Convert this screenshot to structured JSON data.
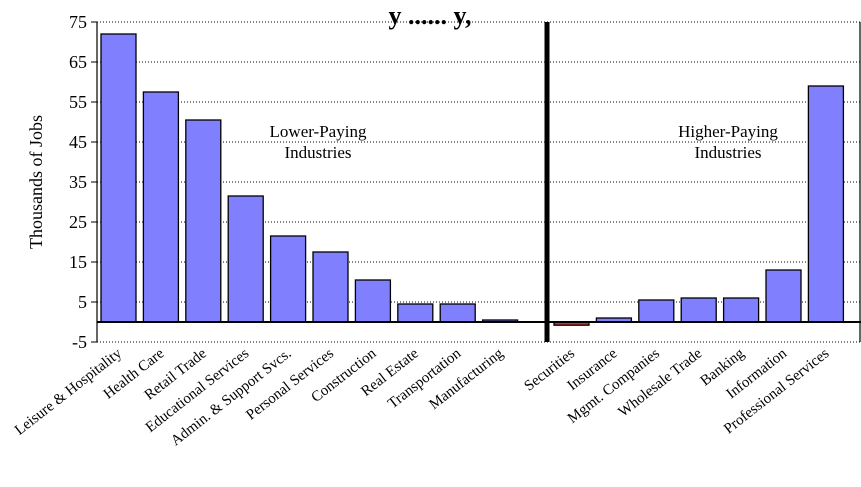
{
  "chart_data": {
    "type": "bar",
    "title": "y ...... y, ",
    "ylabel": "Thousands of Jobs",
    "xlabel": "",
    "ylim": [
      -5,
      75
    ],
    "yticks": [
      -5,
      5,
      15,
      25,
      35,
      45,
      55,
      65,
      75
    ],
    "grid": "horizontal dotted",
    "bar_color": "#8080ff",
    "negative_color": "#cc3333",
    "annotations": [
      {
        "text_line1": "Lower-Paying",
        "text_line2": "Industries"
      },
      {
        "text_line1": "Higher-Paying",
        "text_line2": "Industries"
      }
    ],
    "groups": [
      {
        "categories": [
          "Leisure & Hospitality",
          "Health Care",
          "Retail Trade",
          "Educational Services",
          "Admin. & Support Svcs.",
          "Personal Services",
          "Construction",
          "Real Estate",
          "Transportation",
          "Manufacturing"
        ],
        "values": [
          72,
          57.5,
          50.5,
          31.5,
          21.5,
          17.5,
          10.5,
          4.5,
          4.5,
          0.5
        ]
      },
      {
        "categories": [
          "Securities",
          "Insurance",
          "Mgmt. Companies",
          "Wholesale Trade",
          "Banking",
          "Information",
          "Professional Services"
        ],
        "values": [
          -0.8,
          1,
          5.5,
          6,
          6,
          13,
          59
        ]
      }
    ]
  }
}
